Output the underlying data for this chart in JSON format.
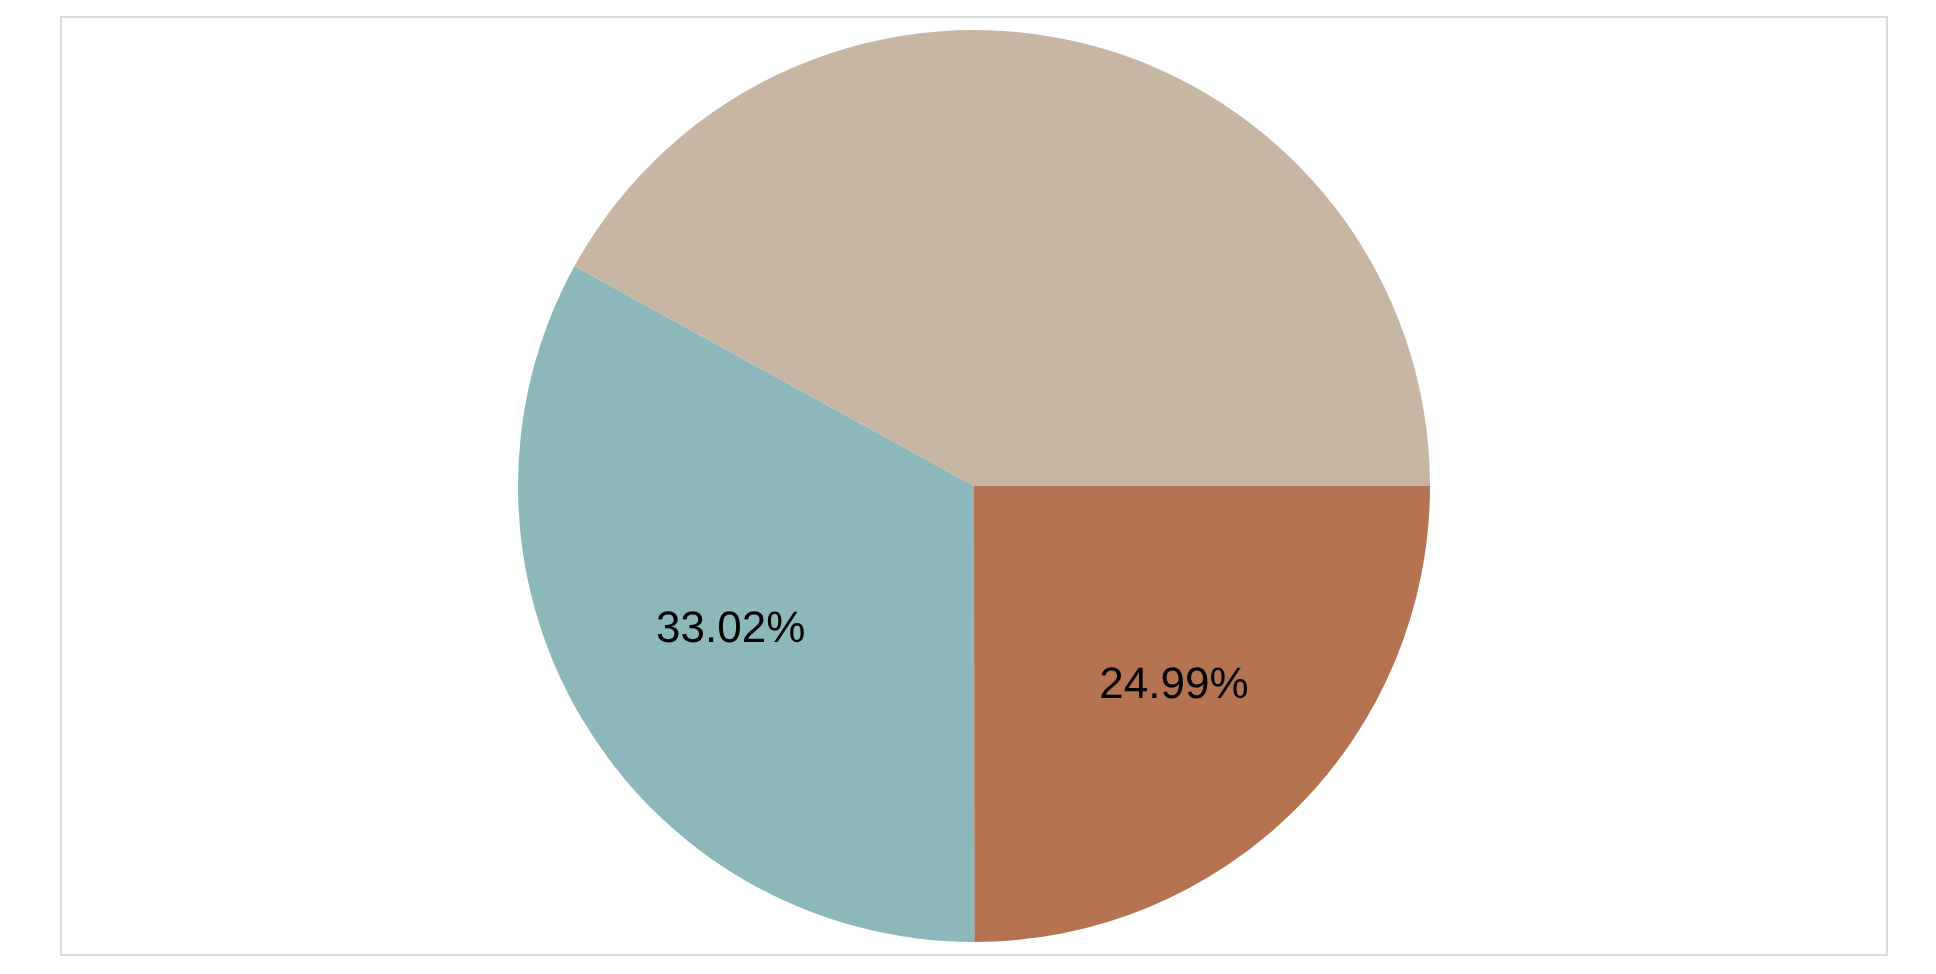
{
  "chart_data": {
    "type": "pie",
    "categories": [
      null,
      null,
      null
    ],
    "values": [
      24.99,
      33.02,
      41.99
    ],
    "colors": [
      "#b57352",
      "#8cb8bc",
      "#c8b6a4"
    ],
    "value_labels": [
      "24.99%",
      "33.02%",
      null
    ],
    "legend": false
  }
}
